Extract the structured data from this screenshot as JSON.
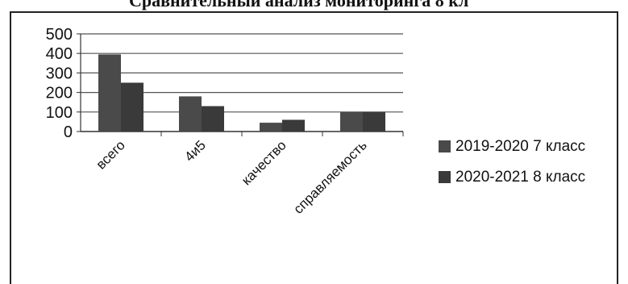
{
  "chart_data": {
    "type": "bar",
    "title": "Сравнительный анализ мониторинга 8 кл",
    "categories": [
      "всего",
      "4и5",
      "качество",
      "справляемость"
    ],
    "series": [
      {
        "name": "2019-2020 7 класс",
        "values": [
          395,
          180,
          45,
          100
        ],
        "color": "#4a4a4a"
      },
      {
        "name": "2020-2021 8 класс",
        "values": [
          250,
          130,
          60,
          100
        ],
        "color": "#3a3a3a"
      }
    ],
    "ylim": [
      0,
      500
    ],
    "yticks": [
      0,
      100,
      200,
      300,
      400,
      500
    ],
    "grid": true,
    "legend": "right"
  }
}
